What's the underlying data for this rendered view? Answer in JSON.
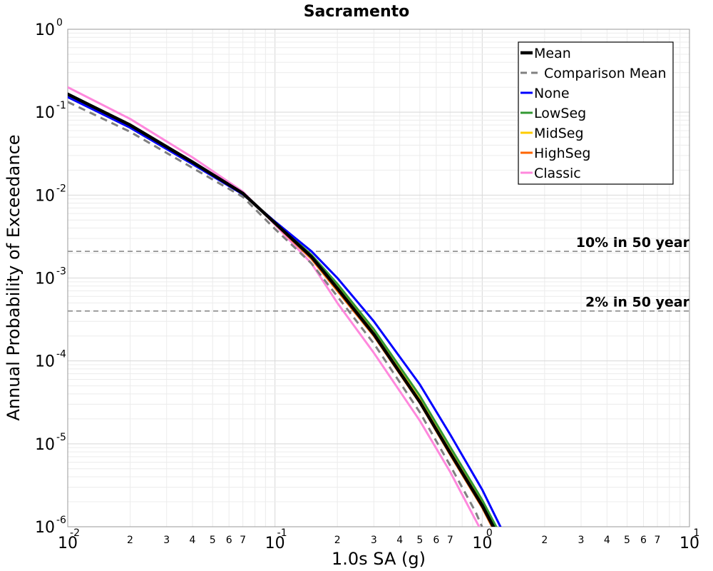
{
  "chart_data": {
    "type": "line",
    "title": "Sacramento",
    "xlabel": "1.0s SA (g)",
    "ylabel": "Annual Probability of Exceedance",
    "xscale": "log",
    "yscale": "log",
    "xlim": [
      0.01,
      10
    ],
    "ylim": [
      1e-06,
      1
    ],
    "grid": true,
    "legend_position": "top-right",
    "x_major_ticks": [
      {
        "base": "10",
        "exp": "-2"
      },
      {
        "base": "10",
        "exp": "-1"
      },
      {
        "base": "10",
        "exp": "0"
      },
      {
        "base": "10",
        "exp": "1"
      }
    ],
    "x_minor_tick_labels": [
      "2",
      "3",
      "4",
      "5",
      "6",
      "7"
    ],
    "y_major_ticks": [
      {
        "base": "10",
        "exp": "0"
      },
      {
        "base": "10",
        "exp": "-1"
      },
      {
        "base": "10",
        "exp": "-2"
      },
      {
        "base": "10",
        "exp": "-3"
      },
      {
        "base": "10",
        "exp": "-4"
      },
      {
        "base": "10",
        "exp": "-5"
      },
      {
        "base": "10",
        "exp": "-6"
      }
    ],
    "reference_lines": [
      {
        "label": "10% in 50 year",
        "y": 0.0021,
        "color": "#808080",
        "dash": "dashed"
      },
      {
        "label": "2% in 50 year",
        "y": 0.0004,
        "color": "#808080",
        "dash": "dashed"
      }
    ],
    "series": [
      {
        "name": "Mean",
        "color": "#000000",
        "dash": "solid",
        "width": "thick",
        "points": [
          [
            0.01,
            0.165
          ],
          [
            0.02,
            0.07
          ],
          [
            0.04,
            0.025
          ],
          [
            0.07,
            0.0105
          ],
          [
            0.1,
            0.0046
          ],
          [
            0.15,
            0.0018
          ],
          [
            0.2,
            0.00075
          ],
          [
            0.3,
            0.00021
          ],
          [
            0.5,
            3.21e-05
          ],
          [
            0.7,
            7.8e-06
          ],
          [
            1.0,
            1.8e-06
          ],
          [
            1.2,
            7.6e-07
          ]
        ]
      },
      {
        "name": "Comparison Mean",
        "color": "#808080",
        "dash": "dashed",
        "width": "medium",
        "points": [
          [
            0.01,
            0.133
          ],
          [
            0.02,
            0.058
          ],
          [
            0.04,
            0.0213
          ],
          [
            0.07,
            0.0095
          ],
          [
            0.1,
            0.0039
          ],
          [
            0.15,
            0.0015
          ],
          [
            0.2,
            0.0006
          ],
          [
            0.3,
            0.000162
          ],
          [
            0.5,
            2.4e-05
          ],
          [
            0.7,
            5.5e-06
          ],
          [
            0.93,
            1.5e-06
          ],
          [
            1.1,
            5.7e-07
          ]
        ]
      },
      {
        "name": "None",
        "color": "#0000ff",
        "dash": "solid",
        "width": "medium",
        "points": [
          [
            0.01,
            0.152
          ],
          [
            0.02,
            0.065
          ],
          [
            0.04,
            0.0236
          ],
          [
            0.07,
            0.0102
          ],
          [
            0.1,
            0.0048
          ],
          [
            0.15,
            0.0021
          ],
          [
            0.2,
            0.001
          ],
          [
            0.3,
            0.0003
          ],
          [
            0.5,
            5.2e-05
          ],
          [
            0.7,
            1.3e-05
          ],
          [
            1.0,
            2.8e-06
          ],
          [
            1.25,
            9e-07
          ]
        ]
      },
      {
        "name": "LowSeg",
        "color": "#339933",
        "dash": "solid",
        "width": "medium",
        "points": [
          [
            0.01,
            0.162
          ],
          [
            0.02,
            0.069
          ],
          [
            0.04,
            0.0248
          ],
          [
            0.07,
            0.0104
          ],
          [
            0.1,
            0.0047
          ],
          [
            0.15,
            0.0019
          ],
          [
            0.2,
            0.00085
          ],
          [
            0.3,
            0.00024
          ],
          [
            0.5,
            3.8e-05
          ],
          [
            0.7,
            9.2e-06
          ],
          [
            1.0,
            2.1e-06
          ],
          [
            1.2,
            8.8e-07
          ]
        ]
      },
      {
        "name": "MidSeg",
        "color": "#ffcc00",
        "dash": "solid",
        "width": "medium",
        "points": [
          [
            0.01,
            0.163
          ],
          [
            0.02,
            0.07
          ],
          [
            0.04,
            0.025
          ],
          [
            0.07,
            0.0105
          ],
          [
            0.1,
            0.0046
          ],
          [
            0.15,
            0.0018
          ],
          [
            0.2,
            0.00078
          ],
          [
            0.3,
            0.00022
          ],
          [
            0.5,
            3.4e-05
          ],
          [
            0.7,
            8.2e-06
          ],
          [
            1.0,
            1.9e-06
          ],
          [
            1.2,
            8e-07
          ]
        ]
      },
      {
        "name": "HighSeg",
        "color": "#ff6600",
        "dash": "solid",
        "width": "medium",
        "points": [
          [
            0.01,
            0.165
          ],
          [
            0.02,
            0.071
          ],
          [
            0.04,
            0.0252
          ],
          [
            0.07,
            0.0105
          ],
          [
            0.1,
            0.0045
          ],
          [
            0.15,
            0.0017
          ],
          [
            0.2,
            0.0007
          ],
          [
            0.3,
            0.0002
          ],
          [
            0.5,
            3.1e-05
          ],
          [
            0.7,
            7.4e-06
          ],
          [
            1.0,
            1.7e-06
          ],
          [
            1.2,
            7e-07
          ]
        ]
      },
      {
        "name": "Classic",
        "color": "#ff88dd",
        "dash": "solid",
        "width": "medium",
        "points": [
          [
            0.01,
            0.2
          ],
          [
            0.02,
            0.083
          ],
          [
            0.04,
            0.0285
          ],
          [
            0.07,
            0.011
          ],
          [
            0.1,
            0.0044
          ],
          [
            0.15,
            0.0015
          ],
          [
            0.2,
            0.0005
          ],
          [
            0.3,
            0.000125
          ],
          [
            0.5,
            1.9e-05
          ],
          [
            0.7,
            4.6e-06
          ],
          [
            0.9,
            1.4e-06
          ],
          [
            1.0,
            8.5e-07
          ]
        ]
      }
    ]
  }
}
